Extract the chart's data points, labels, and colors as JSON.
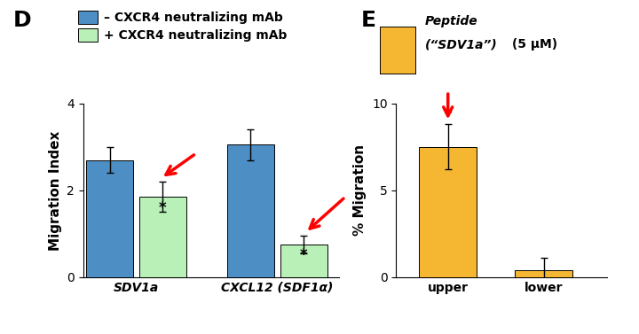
{
  "panel_D": {
    "label": "D",
    "groups": [
      "SDV1a",
      "CXCL12 (SDF1α)"
    ],
    "bar_values": [
      [
        2.7,
        1.85
      ],
      [
        3.05,
        0.75
      ]
    ],
    "bar_errors": [
      [
        0.3,
        0.35
      ],
      [
        0.35,
        0.2
      ]
    ],
    "bar_colors": [
      "#4d8ec4",
      "#b8f0b8"
    ],
    "ylabel": "Migration Index",
    "ylim": [
      0,
      4
    ],
    "yticks": [
      0,
      2,
      4
    ],
    "legend_labels": [
      "– CXCR4 neutralizing mAb",
      "+ CXCR4 neutralizing mAb"
    ]
  },
  "panel_E": {
    "label": "E",
    "categories": [
      "upper",
      "lower"
    ],
    "bar_values": [
      7.5,
      0.4
    ],
    "bar_errors": [
      1.3,
      0.7
    ],
    "bar_color": "#f5b731",
    "ylabel": "% Migration",
    "ylim": [
      0,
      10
    ],
    "yticks": [
      0,
      5,
      10
    ]
  },
  "bg_color": "#ffffff"
}
